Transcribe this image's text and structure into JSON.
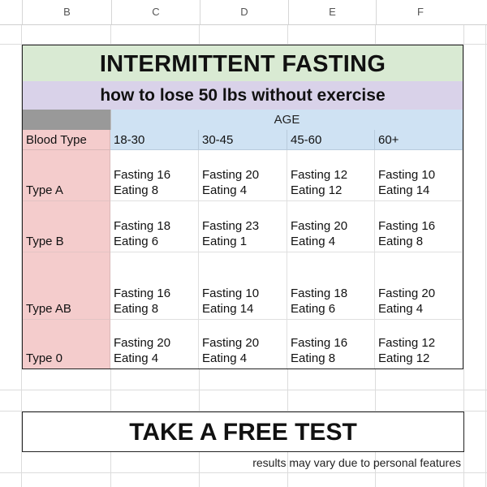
{
  "sheet": {
    "column_headers": [
      "B",
      "C",
      "D",
      "E",
      "F"
    ]
  },
  "table": {
    "title": "INTERMITTENT FASTING",
    "subtitle": "how to lose 50 lbs without exercise",
    "age_label": "AGE",
    "blood_type_label": "Blood Type",
    "age_groups": [
      "18-30",
      "30-45",
      "45-60",
      "60+"
    ],
    "rows": [
      {
        "type": "Type A",
        "cells": [
          {
            "fasting": "Fasting 16",
            "eating": "Eating 8"
          },
          {
            "fasting": "Fasting 20",
            "eating": "Eating 4"
          },
          {
            "fasting": "Fasting 12",
            "eating": "Eating 12"
          },
          {
            "fasting": "Fasting 10",
            "eating": "Eating 14"
          }
        ]
      },
      {
        "type": "Type B",
        "cells": [
          {
            "fasting": "Fasting 18",
            "eating": "Eating 6"
          },
          {
            "fasting": "Fasting 23",
            "eating": "Eating 1"
          },
          {
            "fasting": "Fasting 20",
            "eating": "Eating 4"
          },
          {
            "fasting": "Fasting 16",
            "eating": "Eating 8"
          }
        ]
      },
      {
        "type": "Type AB",
        "cells": [
          {
            "fasting": "Fasting 16",
            "eating": "Eating 8"
          },
          {
            "fasting": "Fasting 10",
            "eating": "Eating 14"
          },
          {
            "fasting": "Fasting 18",
            "eating": "Eating 6"
          },
          {
            "fasting": "Fasting 20",
            "eating": "Eating 4"
          }
        ]
      },
      {
        "type": "Type 0",
        "cells": [
          {
            "fasting": "Fasting 20",
            "eating": "Eating 4"
          },
          {
            "fasting": "Fasting 20",
            "eating": "Eating 4"
          },
          {
            "fasting": "Fasting 16",
            "eating": "Eating 8"
          },
          {
            "fasting": "Fasting 12",
            "eating": "Eating 12"
          }
        ]
      }
    ]
  },
  "cta": {
    "label": "TAKE A FREE TEST"
  },
  "footnote": "results may vary due to personal features",
  "colors": {
    "title_bg": "#d9ead3",
    "subtitle_bg": "#d9d2e9",
    "age_bg": "#cfe2f3",
    "blood_type_bg": "#f4cccc",
    "corner_bg": "#999999"
  }
}
